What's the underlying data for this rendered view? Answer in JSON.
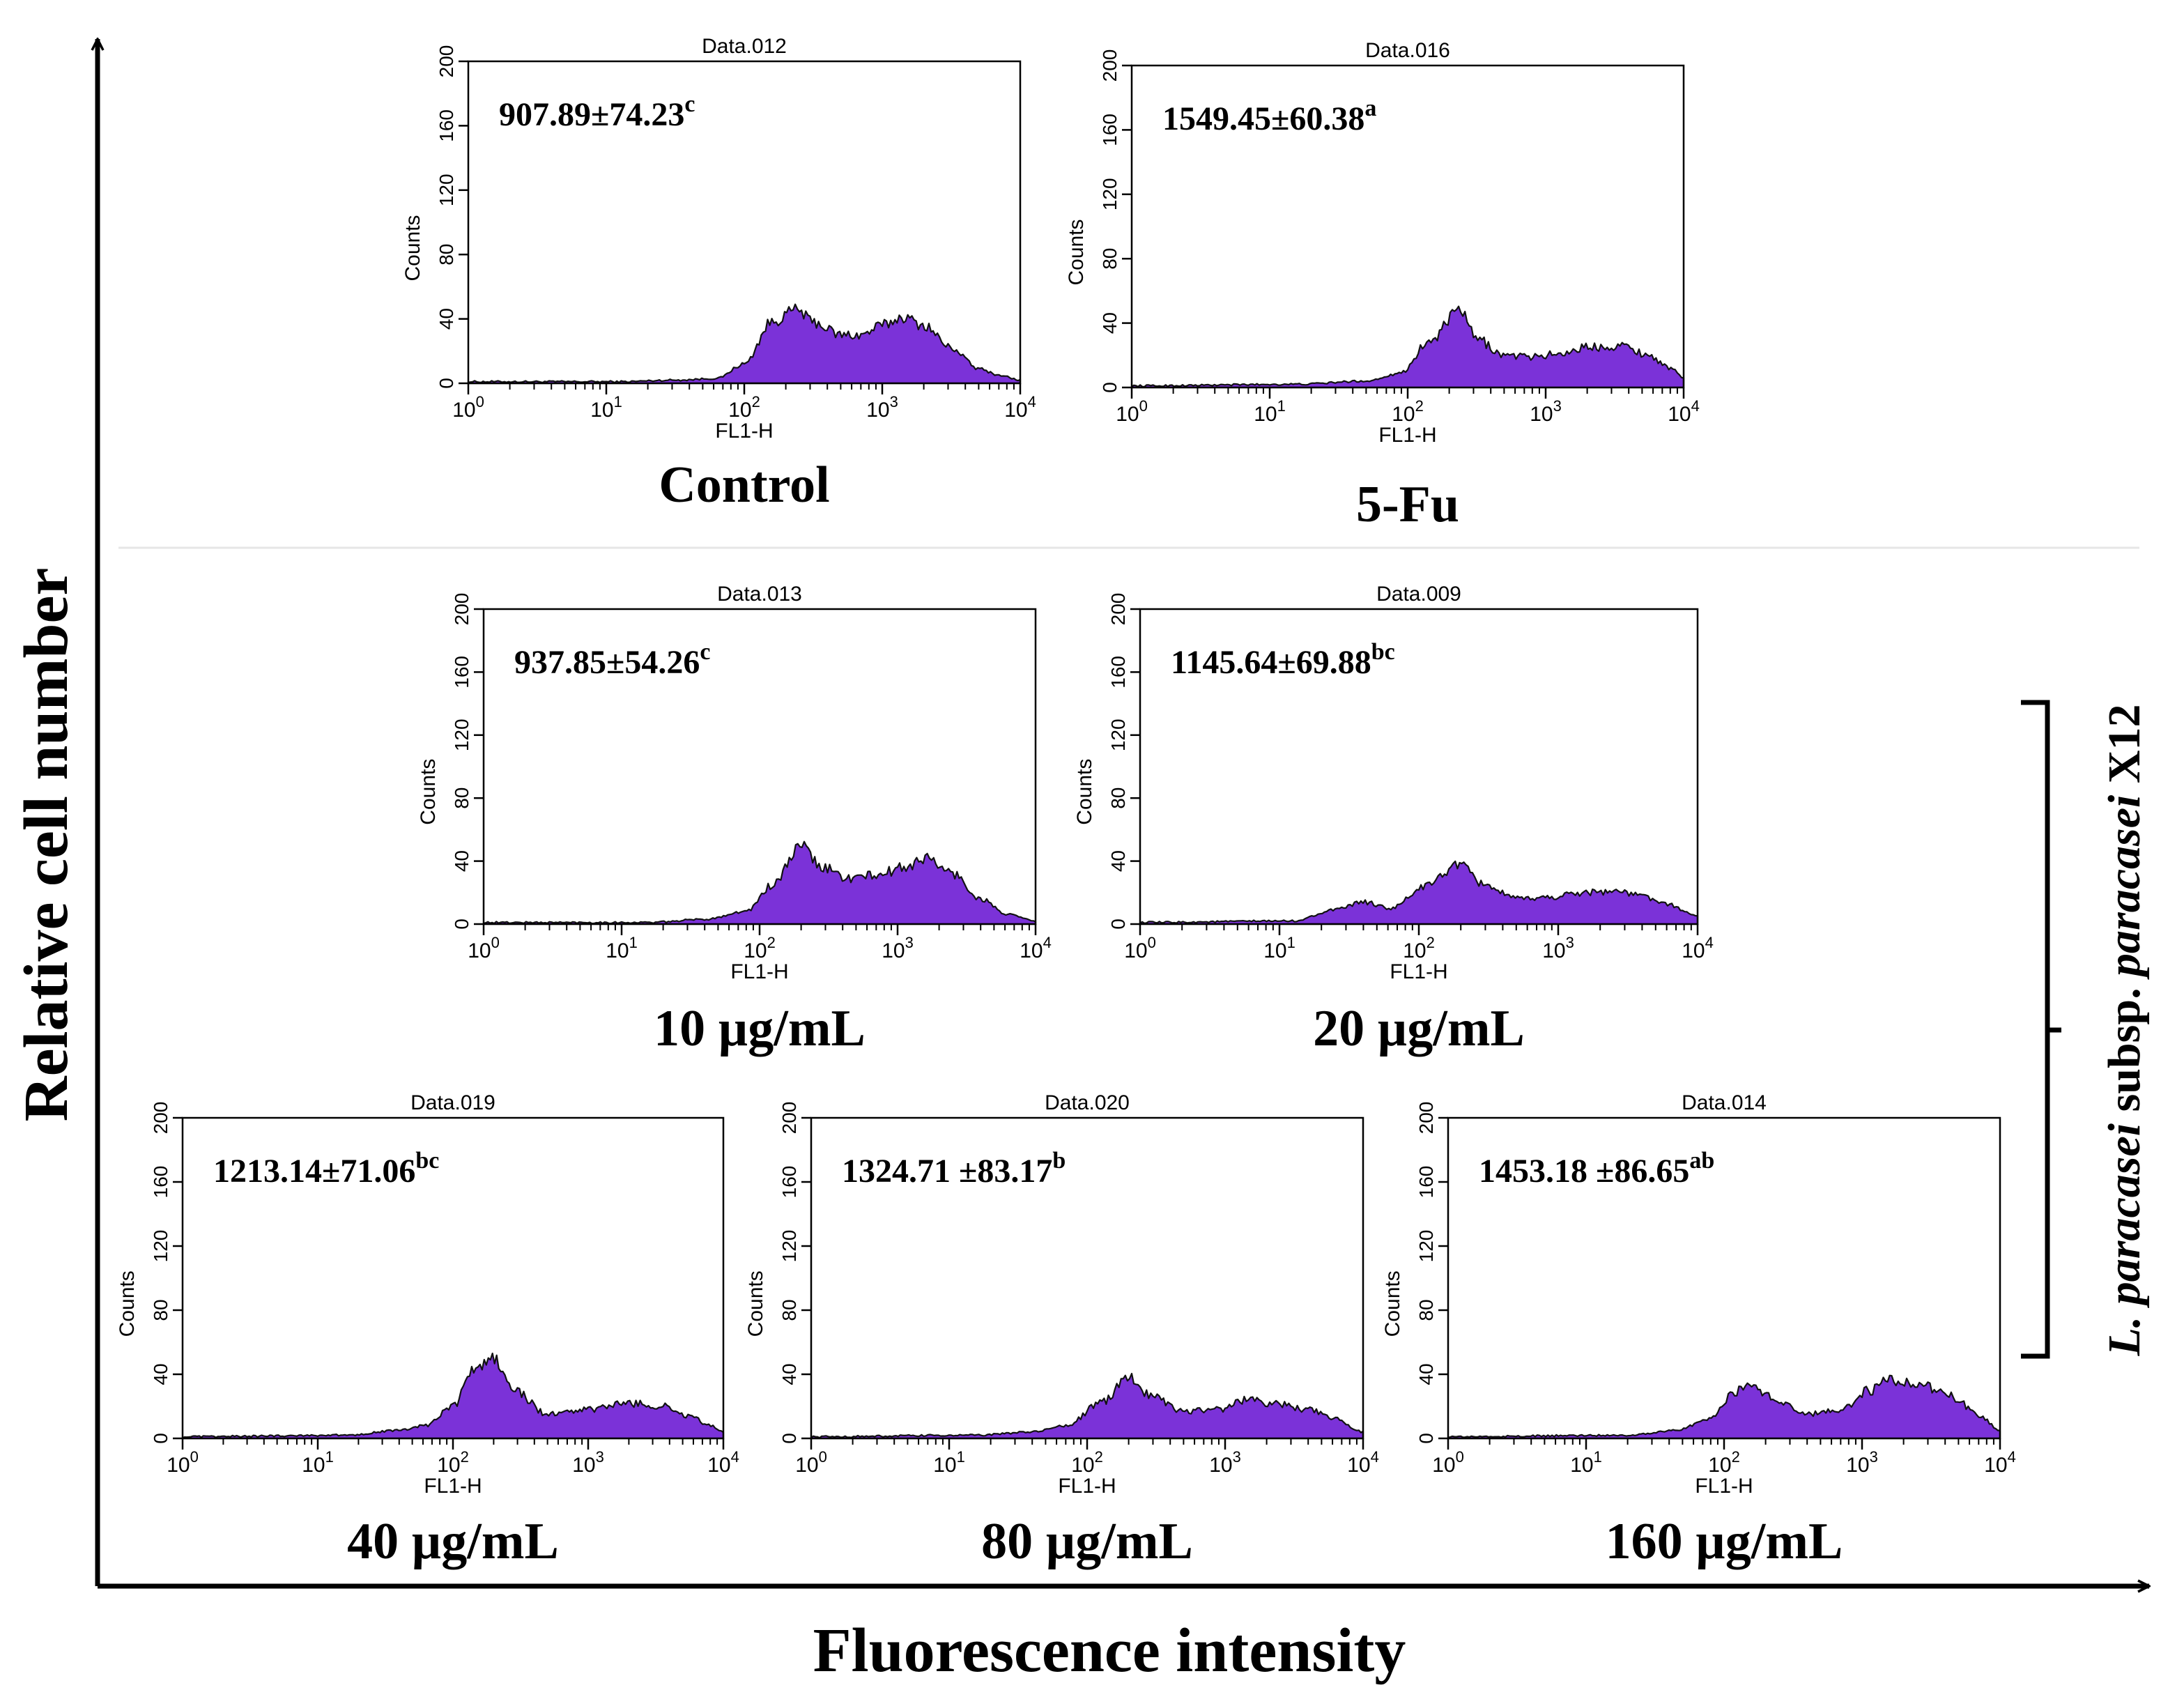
{
  "figure": {
    "y_axis_label": "Relative cell number",
    "x_axis_label": "Fluorescence intensity",
    "bracket_label": {
      "species_italic": "L. paracasei",
      "subsp": " subsp. ",
      "subspecies_italic": "paracasei",
      "strain": " X12"
    }
  },
  "colors": {
    "fill": "#7b32d8",
    "outline": "#111111",
    "axis": "#000000",
    "divider": "#e6e6e6"
  },
  "chart_data": [
    {
      "type": "histogram",
      "title": "Data.012",
      "caption": "Control",
      "annotation": "907.89±74.23",
      "superscript": "c",
      "xlabel": "FL1-H",
      "ylabel": "Counts",
      "xscale": "log",
      "xlim": [
        1,
        10000
      ],
      "ylim": [
        0,
        200
      ],
      "yticks": [
        "0",
        "40",
        "80",
        "120",
        "160",
        "200"
      ],
      "xticks": [
        {
          "base": "10",
          "exp": "0"
        },
        {
          "base": "10",
          "exp": "1"
        },
        {
          "base": "10",
          "exp": "2"
        },
        {
          "base": "10",
          "exp": "3"
        },
        {
          "base": "10",
          "exp": "4"
        }
      ],
      "profile": [
        [
          0,
          1
        ],
        [
          1.1,
          1
        ],
        [
          1.5,
          2
        ],
        [
          1.8,
          3
        ],
        [
          2.0,
          12
        ],
        [
          2.2,
          38
        ],
        [
          2.38,
          46
        ],
        [
          2.5,
          38
        ],
        [
          2.7,
          30
        ],
        [
          2.85,
          30
        ],
        [
          3.0,
          36
        ],
        [
          3.15,
          41
        ],
        [
          3.3,
          36
        ],
        [
          3.5,
          22
        ],
        [
          3.7,
          9
        ],
        [
          3.85,
          5
        ],
        [
          4.0,
          2
        ]
      ]
    },
    {
      "type": "histogram",
      "title": "Data.016",
      "caption": "5-Fu",
      "annotation": "1549.45±60.38",
      "superscript": "a",
      "xlabel": "FL1-H",
      "ylabel": "Counts",
      "xscale": "log",
      "xlim": [
        1,
        10000
      ],
      "ylim": [
        0,
        200
      ],
      "yticks": [
        "0",
        "40",
        "80",
        "120",
        "160",
        "200"
      ],
      "xticks": [
        {
          "base": "10",
          "exp": "0"
        },
        {
          "base": "10",
          "exp": "1"
        },
        {
          "base": "10",
          "exp": "2"
        },
        {
          "base": "10",
          "exp": "3"
        },
        {
          "base": "10",
          "exp": "4"
        }
      ],
      "profile": [
        [
          0,
          1
        ],
        [
          1.2,
          2
        ],
        [
          1.7,
          4
        ],
        [
          1.95,
          9
        ],
        [
          2.15,
          28
        ],
        [
          2.38,
          48
        ],
        [
          2.5,
          30
        ],
        [
          2.7,
          20
        ],
        [
          2.9,
          19
        ],
        [
          3.1,
          21
        ],
        [
          3.3,
          25
        ],
        [
          3.55,
          26
        ],
        [
          3.75,
          20
        ],
        [
          3.9,
          12
        ],
        [
          4.0,
          6
        ]
      ]
    },
    {
      "type": "histogram",
      "title": "Data.013",
      "caption": "10 µg/mL",
      "annotation": "937.85±54.26",
      "superscript": "c",
      "xlabel": "FL1-H",
      "ylabel": "Counts",
      "xscale": "log",
      "xlim": [
        1,
        10000
      ],
      "ylim": [
        0,
        200
      ],
      "yticks": [
        "0",
        "40",
        "80",
        "120",
        "160",
        "200"
      ],
      "xticks": [
        {
          "base": "10",
          "exp": "0"
        },
        {
          "base": "10",
          "exp": "1"
        },
        {
          "base": "10",
          "exp": "2"
        },
        {
          "base": "10",
          "exp": "3"
        },
        {
          "base": "10",
          "exp": "4"
        }
      ],
      "profile": [
        [
          0,
          1
        ],
        [
          1.2,
          1
        ],
        [
          1.6,
          3
        ],
        [
          1.9,
          8
        ],
        [
          2.1,
          25
        ],
        [
          2.3,
          50
        ],
        [
          2.45,
          36
        ],
        [
          2.65,
          29
        ],
        [
          2.85,
          31
        ],
        [
          3.05,
          36
        ],
        [
          3.2,
          42
        ],
        [
          3.4,
          32
        ],
        [
          3.6,
          16
        ],
        [
          3.8,
          6
        ],
        [
          4.0,
          2
        ]
      ]
    },
    {
      "type": "histogram",
      "title": "Data.009",
      "caption": "20 µg/mL",
      "annotation": "1145.64±69.88",
      "superscript": "bc",
      "xlabel": "FL1-H",
      "ylabel": "Counts",
      "xscale": "log",
      "xlim": [
        1,
        10000
      ],
      "ylim": [
        0,
        200
      ],
      "yticks": [
        "0",
        "40",
        "80",
        "120",
        "160",
        "200"
      ],
      "xticks": [
        {
          "base": "10",
          "exp": "0"
        },
        {
          "base": "10",
          "exp": "1"
        },
        {
          "base": "10",
          "exp": "2"
        },
        {
          "base": "10",
          "exp": "3"
        },
        {
          "base": "10",
          "exp": "4"
        }
      ],
      "profile": [
        [
          0,
          1
        ],
        [
          1.1,
          2
        ],
        [
          1.4,
          9
        ],
        [
          1.6,
          14
        ],
        [
          1.8,
          10
        ],
        [
          2.05,
          24
        ],
        [
          2.28,
          38
        ],
        [
          2.45,
          26
        ],
        [
          2.7,
          16
        ],
        [
          2.95,
          17
        ],
        [
          3.15,
          20
        ],
        [
          3.4,
          21
        ],
        [
          3.6,
          18
        ],
        [
          3.8,
          12
        ],
        [
          4.0,
          5
        ]
      ]
    },
    {
      "type": "histogram",
      "title": "Data.019",
      "caption": "40 µg/mL",
      "annotation": "1213.14±71.06",
      "superscript": "bc",
      "xlabel": "FL1-H",
      "ylabel": "Counts",
      "xscale": "log",
      "xlim": [
        1,
        10000
      ],
      "ylim": [
        0,
        200
      ],
      "yticks": [
        "0",
        "40",
        "80",
        "120",
        "160",
        "200"
      ],
      "xticks": [
        {
          "base": "10",
          "exp": "0"
        },
        {
          "base": "10",
          "exp": "1"
        },
        {
          "base": "10",
          "exp": "2"
        },
        {
          "base": "10",
          "exp": "3"
        },
        {
          "base": "10",
          "exp": "4"
        }
      ],
      "profile": [
        [
          0,
          1
        ],
        [
          1.2,
          2
        ],
        [
          1.6,
          5
        ],
        [
          1.8,
          8
        ],
        [
          2.0,
          20
        ],
        [
          2.15,
          42
        ],
        [
          2.3,
          50
        ],
        [
          2.45,
          30
        ],
        [
          2.7,
          15
        ],
        [
          3.0,
          18
        ],
        [
          3.3,
          22
        ],
        [
          3.55,
          20
        ],
        [
          3.75,
          14
        ],
        [
          3.9,
          8
        ],
        [
          4.0,
          4
        ]
      ]
    },
    {
      "type": "histogram",
      "title": "Data.020",
      "caption": "80 µg/mL",
      "annotation": "1324.71 ±83.17",
      "superscript": "b",
      "xlabel": "FL1-H",
      "ylabel": "Counts",
      "xscale": "log",
      "xlim": [
        1,
        10000
      ],
      "ylim": [
        0,
        200
      ],
      "yticks": [
        "0",
        "40",
        "80",
        "120",
        "160",
        "200"
      ],
      "xticks": [
        {
          "base": "10",
          "exp": "0"
        },
        {
          "base": "10",
          "exp": "1"
        },
        {
          "base": "10",
          "exp": "2"
        },
        {
          "base": "10",
          "exp": "3"
        },
        {
          "base": "10",
          "exp": "4"
        }
      ],
      "profile": [
        [
          0,
          1
        ],
        [
          1.2,
          2
        ],
        [
          1.6,
          4
        ],
        [
          1.85,
          8
        ],
        [
          2.1,
          22
        ],
        [
          2.3,
          38
        ],
        [
          2.45,
          28
        ],
        [
          2.7,
          17
        ],
        [
          2.95,
          18
        ],
        [
          3.15,
          24
        ],
        [
          3.35,
          22
        ],
        [
          3.6,
          18
        ],
        [
          3.8,
          12
        ],
        [
          4.0,
          4
        ]
      ]
    },
    {
      "type": "histogram",
      "title": "Data.014",
      "caption": "160 µg/mL",
      "annotation": "1453.18 ±86.65",
      "superscript": "ab",
      "xlabel": "FL1-H",
      "ylabel": "Counts",
      "xscale": "log",
      "xlim": [
        1,
        10000
      ],
      "ylim": [
        0,
        200
      ],
      "yticks": [
        "0",
        "40",
        "80",
        "120",
        "160",
        "200"
      ],
      "xticks": [
        {
          "base": "10",
          "exp": "0"
        },
        {
          "base": "10",
          "exp": "1"
        },
        {
          "base": "10",
          "exp": "2"
        },
        {
          "base": "10",
          "exp": "3"
        },
        {
          "base": "10",
          "exp": "4"
        }
      ],
      "profile": [
        [
          0,
          1
        ],
        [
          1.3,
          2
        ],
        [
          1.65,
          5
        ],
        [
          1.9,
          12
        ],
        [
          2.05,
          27
        ],
        [
          2.18,
          34
        ],
        [
          2.38,
          24
        ],
        [
          2.6,
          15
        ],
        [
          2.85,
          18
        ],
        [
          3.05,
          30
        ],
        [
          3.2,
          36
        ],
        [
          3.45,
          33
        ],
        [
          3.65,
          26
        ],
        [
          3.85,
          14
        ],
        [
          4.0,
          5
        ]
      ]
    }
  ]
}
